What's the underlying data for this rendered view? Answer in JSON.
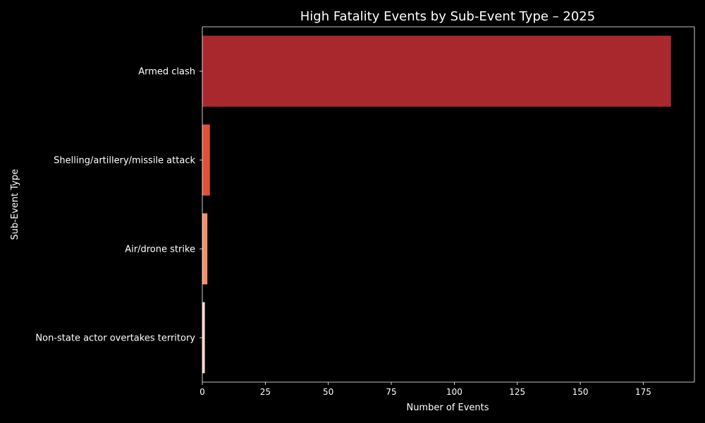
{
  "chart_data": {
    "type": "bar",
    "orientation": "horizontal",
    "title": "High Fatality Events by Sub-Event Type – 2025",
    "xlabel": "Number of Events",
    "ylabel": "Sub-Event Type",
    "categories": [
      "Armed clash",
      "Shelling/artillery/missile attack",
      "Air/drone strike",
      "Non-state actor overtakes territory"
    ],
    "values": [
      186,
      3,
      2,
      1
    ],
    "bar_colors": [
      "#a8282e",
      "#e0503a",
      "#f5906d",
      "#fdd9c6"
    ],
    "xlim": [
      0,
      195.3
    ],
    "xticks": [
      0,
      25,
      50,
      75,
      100,
      125,
      150,
      175
    ],
    "grid": false,
    "background": "#000000",
    "foreground": "#ffffff"
  }
}
